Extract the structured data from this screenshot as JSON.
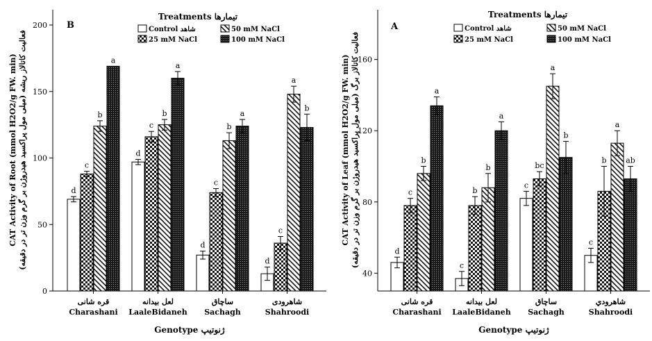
{
  "treatments": [
    {
      "label": "Control شاهد",
      "pattern": "white"
    },
    {
      "label": "25 mM NaCl",
      "pattern": "check"
    },
    {
      "label": "50 mM NaCl",
      "pattern": "hatch"
    },
    {
      "label": "100 mM NaCl",
      "pattern": "dense"
    }
  ],
  "legend_title": "Treatments  تیمارها",
  "x_title": "Genotype  ژنوتیپ",
  "categories": [
    {
      "fa": "قره شانی",
      "en": "Charashani"
    },
    {
      "fa": "لعل بیدانه",
      "en": "LaaleBidaneh"
    },
    {
      "fa": "ساچاق",
      "en": "Sachagh"
    },
    {
      "fa": "شاهرودی",
      "en": "Shahroodi"
    }
  ],
  "categories_a": [
    {
      "fa": "قره شانی",
      "en": "Charashani"
    },
    {
      "fa": "لعل بیدانه",
      "en": "LaaleBidaneh"
    },
    {
      "fa": "ساچاق",
      "en": "Sachagh"
    },
    {
      "fa": "شاهرودي",
      "en": "Shahroodi"
    }
  ],
  "chart_data": [
    {
      "type": "bar",
      "panel": "B",
      "ylabel_en": "CAT Activity of Root (mmol H2O2/g FW. min)",
      "ylabel_fa": "(میلی مول پراکسید هیدروژن بر گرم وزن تر در دقیقه) فعالیت کاتالاز ریشه",
      "ylim": [
        0,
        200
      ],
      "yticks": [
        0,
        50,
        100,
        150,
        200
      ],
      "series": [
        {
          "values": [
            69,
            97,
            27,
            13
          ],
          "errors": [
            2,
            2,
            3,
            5
          ],
          "letters": [
            "d",
            "d",
            "d",
            "d"
          ]
        },
        {
          "values": [
            88,
            116,
            74,
            36
          ],
          "errors": [
            2,
            4,
            3,
            5
          ],
          "letters": [
            "c",
            "c",
            "c",
            "c"
          ]
        },
        {
          "values": [
            124,
            125,
            113,
            148
          ],
          "errors": [
            4,
            4,
            6,
            6
          ],
          "letters": [
            "b",
            "b",
            "b",
            "a"
          ]
        },
        {
          "values": [
            169,
            160,
            124,
            123
          ],
          "errors": [
            0,
            5,
            5,
            10
          ],
          "letters": [
            "a",
            "a",
            "a",
            "b"
          ]
        }
      ]
    },
    {
      "type": "bar",
      "panel": "A",
      "ylabel_en": "CAT Activity of Leaf (mmol H2O2/g FW. min)",
      "ylabel_fa": "(میلی مول پراکسید هیدروژن بر گرم وزن تر در دقیقه) فعالیت کاتالاز برگ",
      "ylim": [
        30,
        170
      ],
      "yticks": [
        40,
        80,
        120,
        160
      ],
      "series": [
        {
          "values": [
            46,
            37,
            82,
            50
          ],
          "errors": [
            3,
            4,
            4,
            4
          ],
          "letters": [
            "d",
            "c",
            "c",
            "c"
          ]
        },
        {
          "values": [
            78,
            78,
            93,
            86
          ],
          "errors": [
            4,
            5,
            4,
            14
          ],
          "letters": [
            "c",
            "b",
            "bc",
            "b"
          ]
        },
        {
          "values": [
            96,
            88,
            145,
            113
          ],
          "errors": [
            4,
            8,
            7,
            7
          ],
          "letters": [
            "b",
            "b",
            "a",
            "a"
          ]
        },
        {
          "values": [
            134,
            120,
            105,
            93
          ],
          "errors": [
            5,
            5,
            9,
            7
          ],
          "letters": [
            "a",
            "a",
            "b",
            "ab"
          ]
        }
      ]
    }
  ]
}
